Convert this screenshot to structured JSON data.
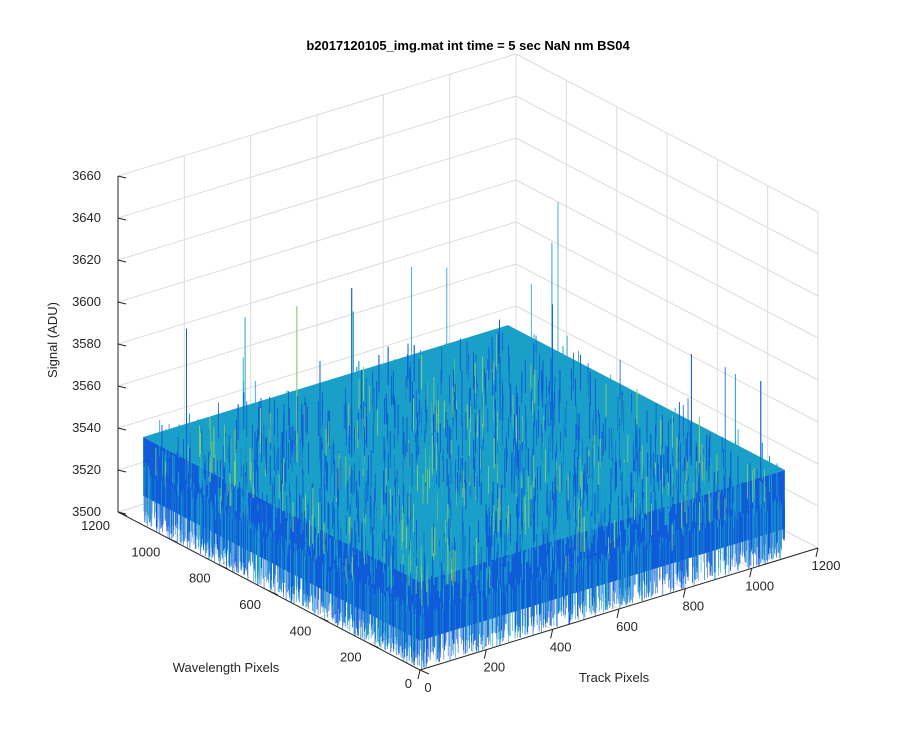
{
  "chart_data": {
    "type": "surface",
    "title": "b2017120105_img.mat int time = 5 sec  NaN nm BS04",
    "xlabel": "Track Pixels",
    "ylabel": "Wavelength Pixels",
    "zlabel": "Signal (ADU)",
    "xlim": [
      0,
      1200
    ],
    "ylim": [
      0,
      1200
    ],
    "zlim": [
      3500,
      3660
    ],
    "x_ticks": [
      "0",
      "200",
      "400",
      "600",
      "800",
      "1000",
      "1200"
    ],
    "y_ticks": [
      "0",
      "200",
      "400",
      "600",
      "800",
      "1000",
      "1200"
    ],
    "z_ticks": [
      "3500",
      "3520",
      "3540",
      "3560",
      "3580",
      "3600",
      "3620",
      "3640",
      "3660"
    ],
    "x_extent": [
      0,
      1100
    ],
    "y_extent": [
      0,
      1100
    ],
    "z_mean": 3530,
    "z_range": [
      3510,
      3620
    ],
    "grid": true,
    "colormap": "parula",
    "colors": {
      "low": "#0f5bd8",
      "mid": "#1aa0c8",
      "high": "#7fcf6e"
    }
  }
}
